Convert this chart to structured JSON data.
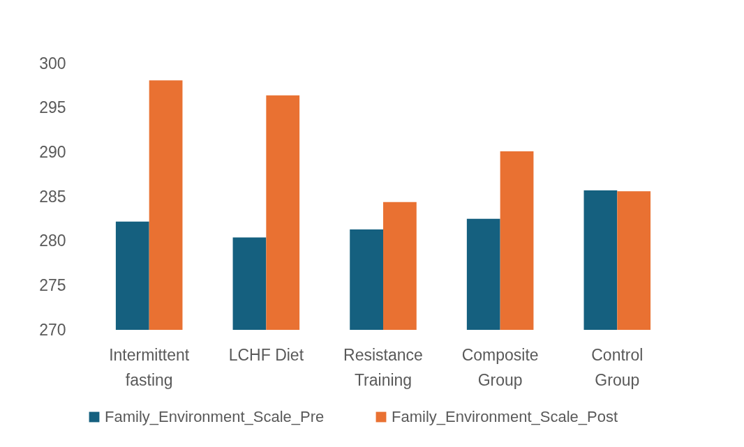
{
  "chart_data": {
    "type": "bar",
    "categories": [
      "Intermittent fasting",
      "LCHF Diet",
      "Resistance Training",
      "Composite Group",
      "Control Group"
    ],
    "series": [
      {
        "name": "Family_Environment_Scale_Pre",
        "color": "#15607f",
        "values": [
          282.2,
          280.4,
          281.3,
          282.5,
          285.7
        ]
      },
      {
        "name": "Family_Environment_Scale_Post",
        "color": "#e97132",
        "values": [
          298.1,
          296.4,
          284.4,
          290.1,
          285.6
        ]
      }
    ],
    "ylim": [
      270,
      300
    ],
    "yticks": [
      270,
      275,
      280,
      285,
      290,
      295,
      300
    ],
    "legend": "bottom"
  }
}
